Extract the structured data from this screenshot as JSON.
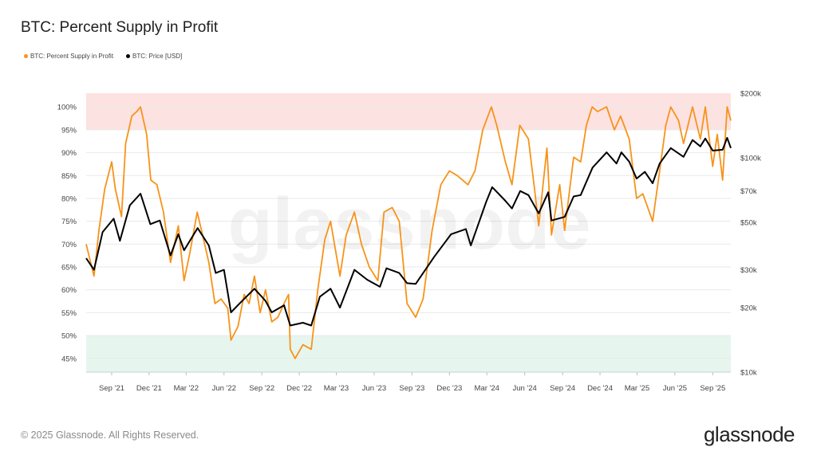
{
  "title": "BTC: Percent Supply in Profit",
  "legend": [
    {
      "label": "BTC: Percent Supply in Profit",
      "color": "#f7931a"
    },
    {
      "label": "BTC: Price [USD]",
      "color": "#000000"
    }
  ],
  "footer": "© 2025 Glassnode. All Rights Reserved.",
  "brand": "glassnode",
  "watermark": "glassnode",
  "chart_data": {
    "type": "line",
    "x_range": [
      "2021-07-01",
      "2025-10-15"
    ],
    "x_ticks": [
      {
        "date": "2021-09-01",
        "label": "Sep '21"
      },
      {
        "date": "2021-12-01",
        "label": "Dec '21"
      },
      {
        "date": "2022-03-01",
        "label": "Mar '22"
      },
      {
        "date": "2022-06-01",
        "label": "Jun '22"
      },
      {
        "date": "2022-09-01",
        "label": "Sep '22"
      },
      {
        "date": "2022-12-01",
        "label": "Dec '22"
      },
      {
        "date": "2023-03-01",
        "label": "Mar '23"
      },
      {
        "date": "2023-06-01",
        "label": "Jun '23"
      },
      {
        "date": "2023-09-01",
        "label": "Sep '23"
      },
      {
        "date": "2023-12-01",
        "label": "Dec '23"
      },
      {
        "date": "2024-03-01",
        "label": "Mar '24"
      },
      {
        "date": "2024-06-01",
        "label": "Jun '24"
      },
      {
        "date": "2024-09-01",
        "label": "Sep '24"
      },
      {
        "date": "2024-12-01",
        "label": "Dec '24"
      },
      {
        "date": "2025-03-01",
        "label": "Mar '25"
      },
      {
        "date": "2025-06-01",
        "label": "Jun '25"
      },
      {
        "date": "2025-09-01",
        "label": "Sep '25"
      }
    ],
    "y_left": {
      "range": [
        42,
        103
      ],
      "ticks": [
        45,
        50,
        55,
        60,
        65,
        70,
        75,
        80,
        85,
        90,
        95,
        100
      ],
      "tick_suffix": "%"
    },
    "y_right": {
      "scale": "log",
      "range": [
        10000,
        200000
      ],
      "ticks": [
        {
          "value": 10000,
          "label": "$10k"
        },
        {
          "value": 20000,
          "label": "$20k"
        },
        {
          "value": 30000,
          "label": "$30k"
        },
        {
          "value": 50000,
          "label": "$50k"
        },
        {
          "value": 70000,
          "label": "$70k"
        },
        {
          "value": 100000,
          "label": "$100k"
        },
        {
          "value": 200000,
          "label": "$200k"
        }
      ]
    },
    "bands": [
      {
        "from": 95,
        "to": 103,
        "color": "#fde2e2"
      },
      {
        "from": 42,
        "to": 50,
        "color": "#e6f6ee"
      }
    ],
    "series": [
      {
        "name": "BTC: Percent Supply in Profit",
        "color": "#f7931a",
        "axis": "left",
        "points": [
          [
            "2021-07-01",
            70
          ],
          [
            "2021-07-20",
            63
          ],
          [
            "2021-08-01",
            73
          ],
          [
            "2021-08-15",
            82
          ],
          [
            "2021-09-01",
            88
          ],
          [
            "2021-09-10",
            82
          ],
          [
            "2021-09-25",
            76
          ],
          [
            "2021-10-05",
            92
          ],
          [
            "2021-10-20",
            98
          ],
          [
            "2021-11-01",
            99
          ],
          [
            "2021-11-10",
            100
          ],
          [
            "2021-11-25",
            94
          ],
          [
            "2021-12-05",
            84
          ],
          [
            "2021-12-20",
            83
          ],
          [
            "2022-01-05",
            77
          ],
          [
            "2022-01-22",
            66
          ],
          [
            "2022-02-10",
            74
          ],
          [
            "2022-02-24",
            62
          ],
          [
            "2022-03-10",
            68
          ],
          [
            "2022-03-28",
            77
          ],
          [
            "2022-04-10",
            72
          ],
          [
            "2022-04-25",
            66
          ],
          [
            "2022-05-10",
            57
          ],
          [
            "2022-05-25",
            58
          ],
          [
            "2022-06-10",
            56
          ],
          [
            "2022-06-18",
            49
          ],
          [
            "2022-07-05",
            52
          ],
          [
            "2022-07-20",
            59
          ],
          [
            "2022-08-01",
            57
          ],
          [
            "2022-08-14",
            63
          ],
          [
            "2022-08-28",
            55
          ],
          [
            "2022-09-10",
            60
          ],
          [
            "2022-09-25",
            53
          ],
          [
            "2022-10-10",
            54
          ],
          [
            "2022-10-25",
            57
          ],
          [
            "2022-11-05",
            59
          ],
          [
            "2022-11-09",
            47
          ],
          [
            "2022-11-21",
            45
          ],
          [
            "2022-12-10",
            48
          ],
          [
            "2022-12-30",
            47
          ],
          [
            "2023-01-15",
            60
          ],
          [
            "2023-02-01",
            71
          ],
          [
            "2023-02-15",
            75
          ],
          [
            "2023-03-10",
            63
          ],
          [
            "2023-03-25",
            72
          ],
          [
            "2023-04-14",
            77
          ],
          [
            "2023-05-01",
            70
          ],
          [
            "2023-05-20",
            65
          ],
          [
            "2023-06-10",
            62
          ],
          [
            "2023-06-25",
            77
          ],
          [
            "2023-07-15",
            78
          ],
          [
            "2023-08-01",
            75
          ],
          [
            "2023-08-20",
            57
          ],
          [
            "2023-09-10",
            54
          ],
          [
            "2023-09-28",
            58
          ],
          [
            "2023-10-20",
            73
          ],
          [
            "2023-11-10",
            83
          ],
          [
            "2023-12-01",
            86
          ],
          [
            "2023-12-20",
            85
          ],
          [
            "2024-01-15",
            83
          ],
          [
            "2024-02-01",
            86
          ],
          [
            "2024-02-20",
            95
          ],
          [
            "2024-03-12",
            100
          ],
          [
            "2024-03-25",
            96
          ],
          [
            "2024-04-15",
            88
          ],
          [
            "2024-05-01",
            83
          ],
          [
            "2024-05-20",
            96
          ],
          [
            "2024-06-10",
            93
          ],
          [
            "2024-06-25",
            82
          ],
          [
            "2024-07-05",
            74
          ],
          [
            "2024-07-25",
            91
          ],
          [
            "2024-08-05",
            72
          ],
          [
            "2024-08-25",
            83
          ],
          [
            "2024-09-06",
            73
          ],
          [
            "2024-09-28",
            89
          ],
          [
            "2024-10-15",
            88
          ],
          [
            "2024-10-29",
            96
          ],
          [
            "2024-11-12",
            100
          ],
          [
            "2024-11-25",
            99
          ],
          [
            "2024-12-17",
            100
          ],
          [
            "2025-01-05",
            95
          ],
          [
            "2025-01-20",
            98
          ],
          [
            "2025-02-10",
            93
          ],
          [
            "2025-02-28",
            80
          ],
          [
            "2025-03-15",
            81
          ],
          [
            "2025-04-08",
            75
          ],
          [
            "2025-04-25",
            86
          ],
          [
            "2025-05-10",
            96
          ],
          [
            "2025-05-22",
            100
          ],
          [
            "2025-06-10",
            97
          ],
          [
            "2025-06-22",
            92
          ],
          [
            "2025-07-14",
            100
          ],
          [
            "2025-08-02",
            93
          ],
          [
            "2025-08-14",
            100
          ],
          [
            "2025-09-01",
            87
          ],
          [
            "2025-09-12",
            94
          ],
          [
            "2025-09-25",
            84
          ],
          [
            "2025-10-06",
            100
          ],
          [
            "2025-10-15",
            97
          ]
        ]
      },
      {
        "name": "BTC: Price [USD]",
        "color": "#000000",
        "axis": "right",
        "points": [
          [
            "2021-07-01",
            34000
          ],
          [
            "2021-07-20",
            30000
          ],
          [
            "2021-08-10",
            45000
          ],
          [
            "2021-09-06",
            52000
          ],
          [
            "2021-09-21",
            41000
          ],
          [
            "2021-10-15",
            60000
          ],
          [
            "2021-11-10",
            68000
          ],
          [
            "2021-12-04",
            49000
          ],
          [
            "2021-12-27",
            51000
          ],
          [
            "2022-01-22",
            35000
          ],
          [
            "2022-02-10",
            44000
          ],
          [
            "2022-02-24",
            37000
          ],
          [
            "2022-03-29",
            47000
          ],
          [
            "2022-04-25",
            39000
          ],
          [
            "2022-05-12",
            29000
          ],
          [
            "2022-06-01",
            30000
          ],
          [
            "2022-06-18",
            19000
          ],
          [
            "2022-07-10",
            21000
          ],
          [
            "2022-08-14",
            24500
          ],
          [
            "2022-09-10",
            21500
          ],
          [
            "2022-09-25",
            19000
          ],
          [
            "2022-10-25",
            20500
          ],
          [
            "2022-11-09",
            16500
          ],
          [
            "2022-12-10",
            17000
          ],
          [
            "2022-12-30",
            16500
          ],
          [
            "2023-01-20",
            22500
          ],
          [
            "2023-02-15",
            24500
          ],
          [
            "2023-03-10",
            20000
          ],
          [
            "2023-04-14",
            30000
          ],
          [
            "2023-05-15",
            27000
          ],
          [
            "2023-06-15",
            25000
          ],
          [
            "2023-07-01",
            30500
          ],
          [
            "2023-08-01",
            29000
          ],
          [
            "2023-08-20",
            26000
          ],
          [
            "2023-09-10",
            25800
          ],
          [
            "2023-10-25",
            34500
          ],
          [
            "2023-12-05",
            44000
          ],
          [
            "2024-01-10",
            46500
          ],
          [
            "2024-01-22",
            39000
          ],
          [
            "2024-02-28",
            62000
          ],
          [
            "2024-03-14",
            73000
          ],
          [
            "2024-04-15",
            63000
          ],
          [
            "2024-05-01",
            58000
          ],
          [
            "2024-05-21",
            70000
          ],
          [
            "2024-06-10",
            67000
          ],
          [
            "2024-07-05",
            55000
          ],
          [
            "2024-07-28",
            69000
          ],
          [
            "2024-08-05",
            51000
          ],
          [
            "2024-09-06",
            53000
          ],
          [
            "2024-09-28",
            66000
          ],
          [
            "2024-10-15",
            67000
          ],
          [
            "2024-11-13",
            90000
          ],
          [
            "2024-12-17",
            106000
          ],
          [
            "2025-01-10",
            94000
          ],
          [
            "2025-01-22",
            106000
          ],
          [
            "2025-02-10",
            96000
          ],
          [
            "2025-02-28",
            80000
          ],
          [
            "2025-03-20",
            86000
          ],
          [
            "2025-04-08",
            76000
          ],
          [
            "2025-04-25",
            94000
          ],
          [
            "2025-05-22",
            111000
          ],
          [
            "2025-06-22",
            101000
          ],
          [
            "2025-07-14",
            121000
          ],
          [
            "2025-08-02",
            113000
          ],
          [
            "2025-08-14",
            123000
          ],
          [
            "2025-09-01",
            108000
          ],
          [
            "2025-09-25",
            109000
          ],
          [
            "2025-10-06",
            124000
          ],
          [
            "2025-10-15",
            111000
          ]
        ]
      }
    ]
  }
}
